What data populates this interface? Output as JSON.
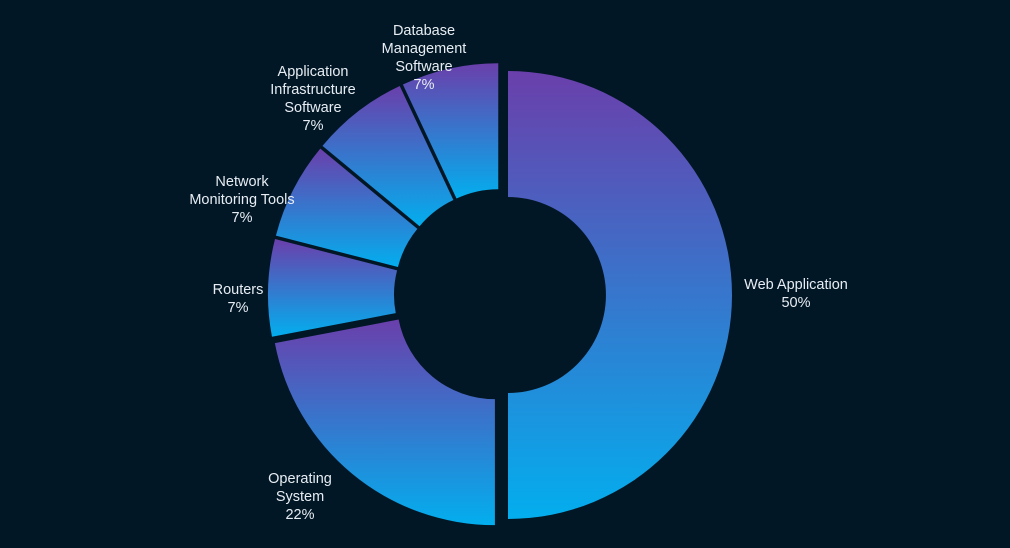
{
  "chart_data": {
    "type": "pie",
    "variant": "donut",
    "title": "",
    "unit": "%",
    "legend": "none",
    "slices": [
      {
        "name": "Web Application",
        "label_lines": [
          "Web Application"
        ],
        "value_label": "50%",
        "value": 50
      },
      {
        "name": "Operating System",
        "label_lines": [
          "Operating",
          "System"
        ],
        "value_label": "22%",
        "value": 22
      },
      {
        "name": "Routers",
        "label_lines": [
          "Routers"
        ],
        "value_label": "7%",
        "value": 7
      },
      {
        "name": "Network Monitoring Tools",
        "label_lines": [
          "Network",
          "Monitoring Tools"
        ],
        "value_label": "7%",
        "value": 7
      },
      {
        "name": "Application Infrastructure Software",
        "label_lines": [
          "Application",
          "Infrastructure",
          "Software"
        ],
        "value_label": "7%",
        "value": 7
      },
      {
        "name": "Database Management Software",
        "label_lines": [
          "Database",
          "Management",
          "Software"
        ],
        "value_label": "7%",
        "value": 7
      }
    ],
    "colors": {
      "background": "#021726",
      "gradient_top": "#6a3fab",
      "gradient_bottom": "#03aeee",
      "label_text": "#e7edf3"
    }
  }
}
